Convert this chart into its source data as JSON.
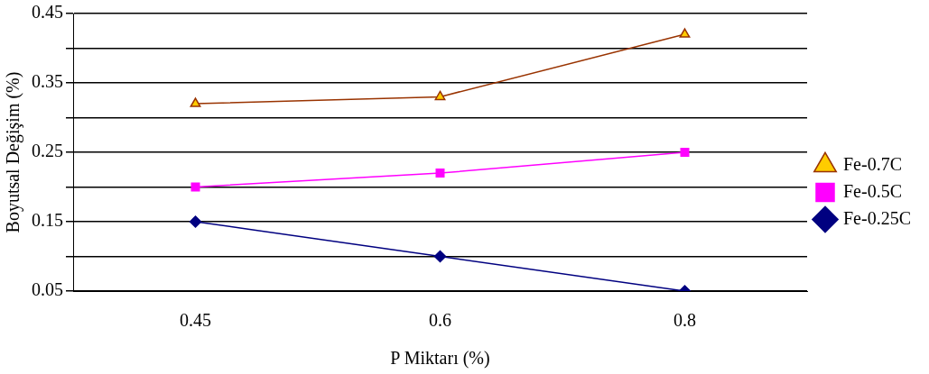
{
  "chart_data": {
    "type": "line",
    "xlabel": "P Miktarı (%)",
    "ylabel": "Boyutsal Değişim (%)",
    "categories": [
      "0.45",
      "0.6",
      "0.8"
    ],
    "series": [
      {
        "name": "Fe-0.7C",
        "color": "#993300",
        "marker": "triangle",
        "values": [
          0.32,
          0.33,
          0.42
        ]
      },
      {
        "name": "Fe-0.5C",
        "color": "#ff00ff",
        "marker": "square",
        "values": [
          0.2,
          0.22,
          0.25
        ]
      },
      {
        "name": "Fe-0.25C",
        "color": "#000080",
        "marker": "diamond",
        "values": [
          0.15,
          0.1,
          0.05
        ]
      }
    ],
    "ylim": [
      0.05,
      0.45
    ],
    "yticks": [
      0.05,
      {
        "value": 0.1,
        "label": null
      },
      0.15,
      {
        "value": 0.2,
        "label": null
      },
      0.25,
      {
        "value": 0.3,
        "label": null
      },
      0.35,
      {
        "value": 0.4,
        "label": null
      },
      0.45
    ],
    "grid": "y",
    "legend": "right"
  }
}
